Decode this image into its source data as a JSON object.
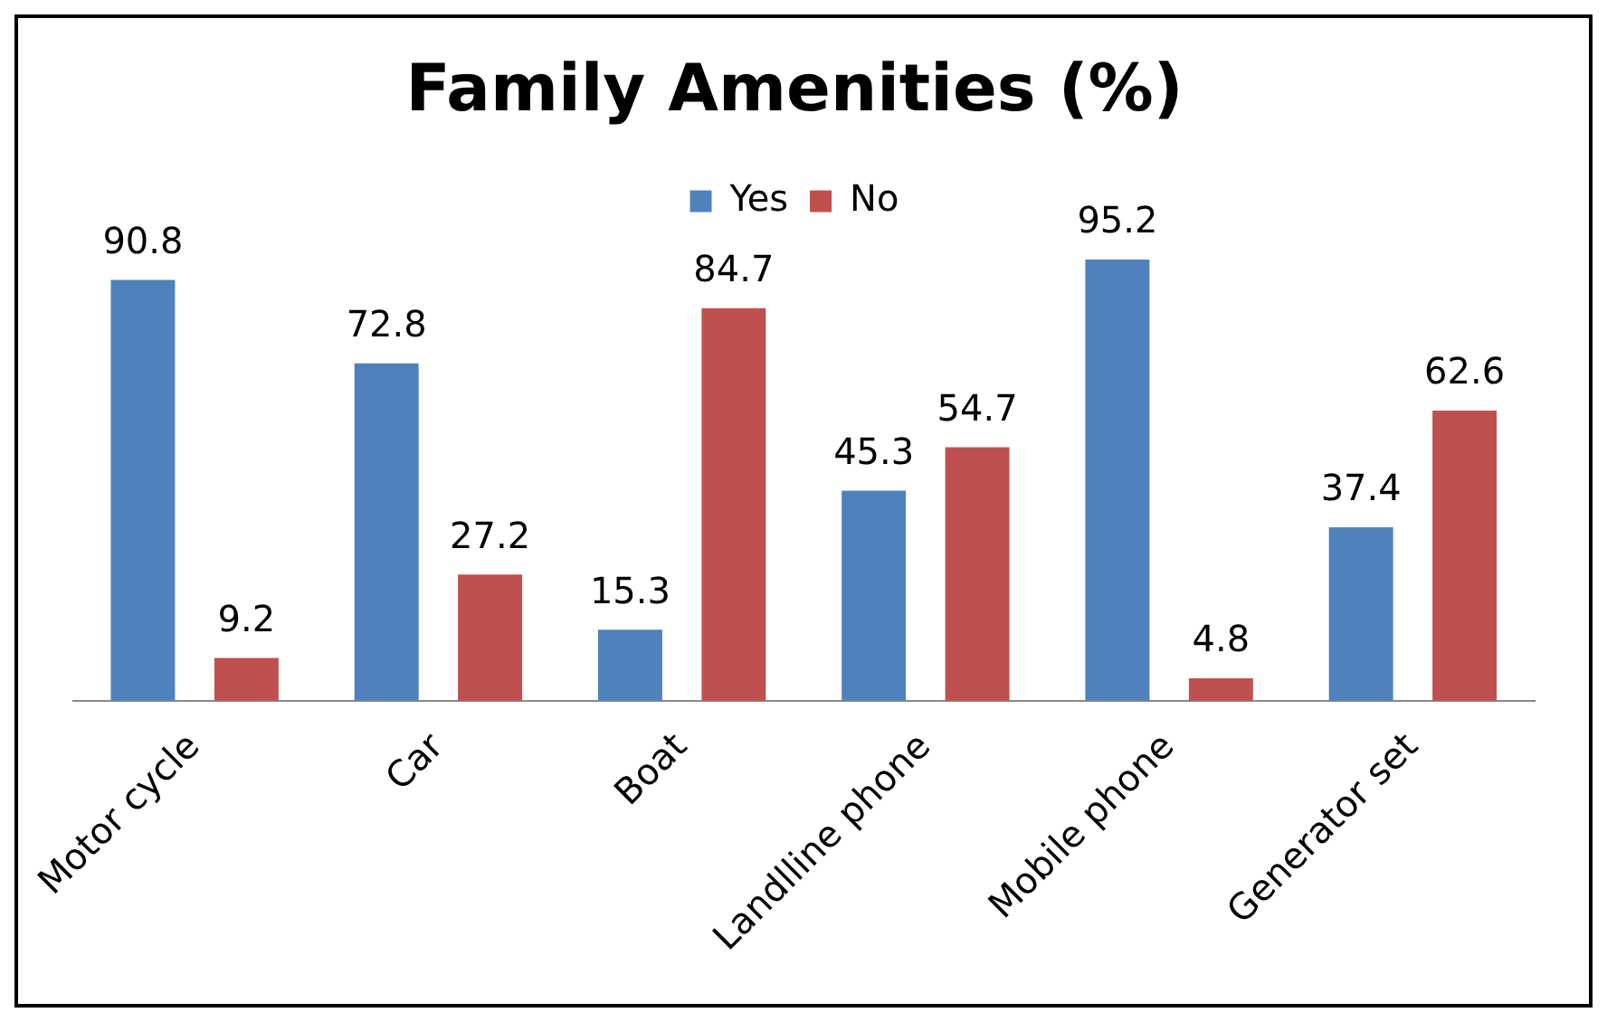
{
  "chart_data": {
    "type": "bar",
    "title": "Family Amenities (%)",
    "categories": [
      "Motor cycle",
      "Car",
      "Boat",
      "Landlline phone",
      "Mobile phone",
      "Generator set"
    ],
    "series": [
      {
        "name": "Yes",
        "color": "#4f81bd",
        "values": [
          90.8,
          72.8,
          15.3,
          45.3,
          95.2,
          37.4
        ]
      },
      {
        "name": "No",
        "color": "#c0504d",
        "values": [
          9.2,
          27.2,
          84.7,
          54.7,
          4.8,
          62.6
        ]
      }
    ],
    "data_labels": true,
    "legend": "top",
    "grid": false
  }
}
